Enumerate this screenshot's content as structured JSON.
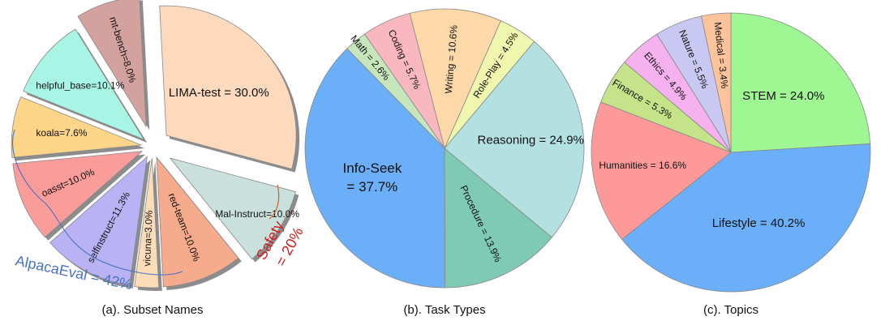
{
  "chart_data": [
    {
      "type": "pie",
      "caption": "(a). Subset Names",
      "slices": [
        {
          "label": "LIMA-test = 30.0%",
          "value": 30.0,
          "color": "#fdd9bd"
        },
        {
          "label": "Mal-Instruct=10.0%",
          "value": 10.0,
          "color": "#c9e0dc"
        },
        {
          "label": "red-team=10.0%",
          "value": 10.0,
          "color": "#f6ab8d"
        },
        {
          "label": "vicuna=3.0%",
          "value": 3.0,
          "color": "#fddcb8"
        },
        {
          "label": "selfinstruct=11.3%",
          "value": 11.3,
          "color": "#b9b2f5"
        },
        {
          "label": "oasst=10.0%",
          "value": 10.0,
          "color": "#fa9d9a"
        },
        {
          "label": "koala=7.6%",
          "value": 7.6,
          "color": "#fdd589"
        },
        {
          "label": "helpful_base=10.1%",
          "value": 10.1,
          "color": "#a8f5e6"
        },
        {
          "label": "mt-bench=8.0%",
          "value": 8.0,
          "color": "#d3a19e"
        }
      ],
      "annotations": [
        {
          "text": "AlpacaEval = 42%",
          "color": "#4a72c4"
        },
        {
          "text": "Safety",
          "color": "#cc1f1f"
        },
        {
          "text": "= 20%",
          "color": "#cc1f1f"
        }
      ]
    },
    {
      "type": "pie",
      "caption": "(b). Task Types",
      "slices": [
        {
          "label": "Reasoning = 24.9%",
          "value": 24.9,
          "color": "#b3e0e0"
        },
        {
          "label": "Procedure = 13.9%",
          "value": 13.9,
          "color": "#7ecab4"
        },
        {
          "label": "Info-Seek",
          "label2": "= 37.7%",
          "value": 37.7,
          "color": "#6aaff8"
        },
        {
          "label": "Math = 2.6%",
          "value": 2.6,
          "color": "#c7e6bc"
        },
        {
          "label": "Coding = 5.7%",
          "value": 5.7,
          "color": "#f9b7bf"
        },
        {
          "label": "Writing = 10.6%",
          "value": 10.6,
          "color": "#fdd8a8"
        },
        {
          "label": "Role-Play = 4.5%",
          "value": 4.5,
          "color": "#eef7ad"
        }
      ]
    },
    {
      "type": "pie",
      "caption": "(c). Topics",
      "slices": [
        {
          "label": "STEM = 24.0%",
          "value": 24.0,
          "color": "#9ef792"
        },
        {
          "label": "Lifestyle = 40.2%",
          "value": 40.2,
          "color": "#6aaff8"
        },
        {
          "label": "Humanities = 16.6%",
          "value": 16.6,
          "color": "#fd9a99"
        },
        {
          "label": "Finance = 5.3%",
          "value": 5.3,
          "color": "#c5e48a"
        },
        {
          "label": "Ethics = 4.9%",
          "value": 4.9,
          "color": "#f6b1ef"
        },
        {
          "label": "Nature = 5.5%",
          "value": 5.5,
          "color": "#c9c8f2"
        },
        {
          "label": "Medical = 3.4%",
          "value": 3.4,
          "color": "#fdc49c"
        }
      ]
    }
  ]
}
